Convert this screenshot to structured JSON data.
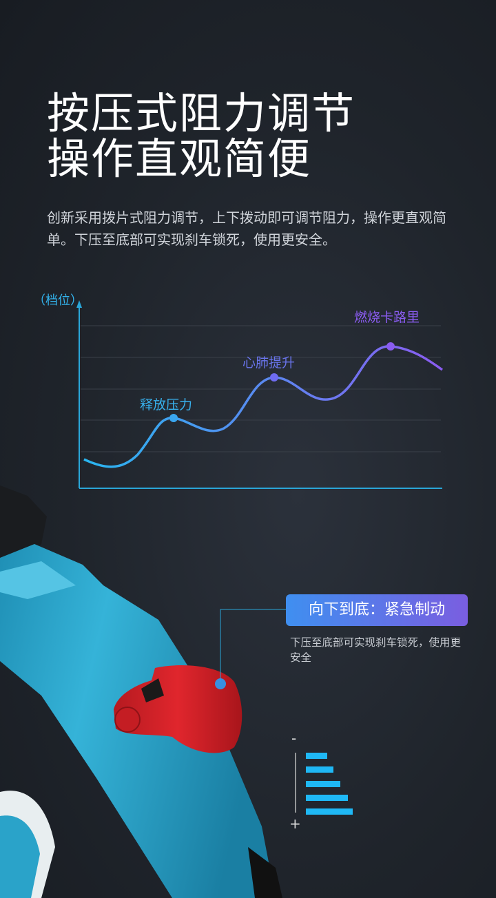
{
  "header": {
    "title_line1": "按压式阻力调节",
    "title_line2": "操作直观简便",
    "description": "创新采用拨片式阻力调节，上下拨动即可调节阻力，操作更直观简单。下压至底部可实现刹车锁死，使用更安全。"
  },
  "chart": {
    "y_unit": "（档位）",
    "labels": [
      "释放压力",
      "心肺提升",
      "燃烧卡路里"
    ],
    "colors": {
      "start": "#29b6f0",
      "end": "#8a5cf0"
    }
  },
  "callout": {
    "title": "向下到底：紧急制动",
    "description": "下压至底部可实现刹车锁死，使用更安全"
  },
  "resistance_scale": {
    "minus": "-",
    "plus": "+",
    "levels": 5,
    "bar_color": "#1fb8f5"
  },
  "colors": {
    "frame": "#2aa3c9",
    "lever": "#d8232a"
  }
}
